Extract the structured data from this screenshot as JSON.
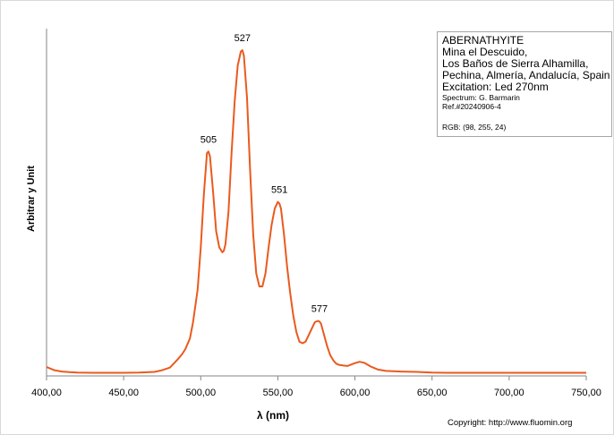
{
  "chart_data": {
    "type": "line",
    "xlabel": "λ (nm)",
    "ylabel": "Arbitrar y Unit",
    "xlim": [
      400,
      750
    ],
    "ylim": [
      0,
      1.0
    ],
    "x_ticks": [
      "400,00",
      "450,00",
      "500,00",
      "550,00",
      "600,00",
      "650,00",
      "700,00",
      "750,00"
    ],
    "x_tick_values": [
      400,
      450,
      500,
      550,
      600,
      650,
      700,
      750
    ],
    "line_color": "#ea5a1e",
    "series": [
      {
        "x": [
          400,
          405,
          410,
          415,
          420,
          430,
          440,
          450,
          460,
          470,
          475,
          480,
          485,
          488,
          490,
          493,
          495,
          498,
          500,
          502,
          504,
          505,
          506,
          508,
          510,
          512,
          514,
          515,
          516,
          518,
          520,
          522,
          524,
          526,
          527,
          528,
          530,
          532,
          534,
          536,
          538,
          540,
          542,
          544,
          546,
          548,
          550,
          551,
          552,
          554,
          556,
          558,
          560,
          562,
          564,
          566,
          568,
          570,
          572,
          574,
          576,
          577,
          578,
          580,
          582,
          584,
          586,
          588,
          590,
          595,
          600,
          603,
          606,
          610,
          615,
          620,
          630,
          640,
          650,
          660,
          680,
          700,
          720,
          750
        ],
        "y": [
          0.022,
          0.012,
          0.008,
          0.006,
          0.005,
          0.004,
          0.004,
          0.004,
          0.005,
          0.007,
          0.012,
          0.02,
          0.045,
          0.062,
          0.077,
          0.11,
          0.16,
          0.26,
          0.39,
          0.55,
          0.68,
          0.685,
          0.67,
          0.56,
          0.44,
          0.39,
          0.375,
          0.38,
          0.4,
          0.5,
          0.68,
          0.84,
          0.95,
          0.993,
          0.997,
          0.98,
          0.85,
          0.63,
          0.43,
          0.31,
          0.27,
          0.27,
          0.31,
          0.39,
          0.46,
          0.51,
          0.53,
          0.525,
          0.51,
          0.43,
          0.33,
          0.25,
          0.18,
          0.13,
          0.1,
          0.095,
          0.1,
          0.12,
          0.14,
          0.16,
          0.164,
          0.162,
          0.155,
          0.12,
          0.085,
          0.058,
          0.042,
          0.032,
          0.028,
          0.025,
          0.034,
          0.038,
          0.035,
          0.024,
          0.014,
          0.01,
          0.008,
          0.007,
          0.005,
          0.004,
          0.004,
          0.004,
          0.004,
          0.004
        ]
      }
    ],
    "annotations": [
      {
        "text": "505",
        "x": 505,
        "y": 0.685
      },
      {
        "text": "527",
        "x": 527,
        "y": 0.997
      },
      {
        "text": "551",
        "x": 551,
        "y": 0.53
      },
      {
        "text": "577",
        "x": 577,
        "y": 0.164
      }
    ]
  },
  "info_box": {
    "line1": "ABERNATHYITE",
    "line2": "Mina el Descuido,",
    "line3": "Los Baños de Sierra Alhamilla,",
    "line4": "Pechina, Almería, Andalucía, Spain",
    "line5": "Excitation: Led 270nm",
    "spectrum": "Spectrum: G. Barmarin",
    "ref": "Ref.#20240906-4",
    "rgb": "RGB: (98, 255, 24)"
  },
  "copyright": "Copyright: http://www.fluomin.org"
}
